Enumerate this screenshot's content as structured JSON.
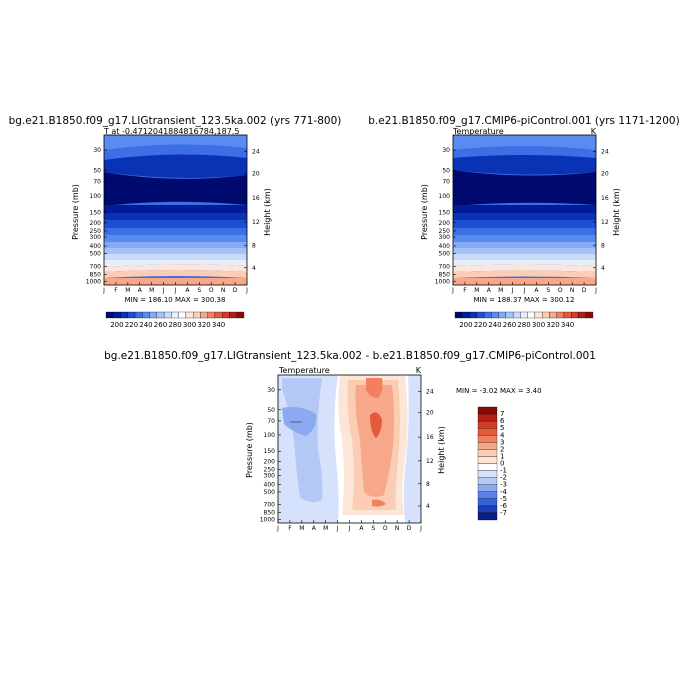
{
  "chart_data": [
    {
      "type": "contour",
      "title": "bg.e21.B1850.f09_g17.LIGtransient_123.5ka.002 (yrs 771-800)",
      "subtitle_left": "T at -0.4712041884816784,187.5",
      "subtitle_right": "",
      "ylabel": "Pressure (mb)",
      "ylabel_right": "Height (km)",
      "months": [
        "J",
        "F",
        "M",
        "A",
        "M",
        "J",
        "J",
        "A",
        "S",
        "O",
        "N",
        "D",
        "J"
      ],
      "pressure_ticks": [
        "30",
        "50",
        "70",
        "100",
        "150",
        "200",
        "250",
        "300",
        "400",
        "500",
        "700",
        "850",
        "1000"
      ],
      "height_ticks": [
        "24",
        "20",
        "16",
        "12",
        "8",
        "4"
      ],
      "stats": "MIN = 186.10  MAX = 300.38",
      "colorbar_labels": [
        "200",
        "220",
        "240",
        "260",
        "280",
        "300",
        "320",
        "340"
      ],
      "min": 186.1,
      "max": 300.38
    },
    {
      "type": "contour",
      "title": "b.e21.B1850.f09_g17.CMIP6-piControl.001 (yrs 1171-1200)",
      "subtitle_left": "Temperature",
      "subtitle_right": "K",
      "ylabel": "Pressure (mb)",
      "ylabel_right": "Height (km)",
      "months": [
        "J",
        "F",
        "M",
        "A",
        "M",
        "J",
        "J",
        "A",
        "S",
        "O",
        "N",
        "D",
        "J"
      ],
      "pressure_ticks": [
        "30",
        "50",
        "70",
        "100",
        "150",
        "200",
        "250",
        "300",
        "400",
        "500",
        "700",
        "850",
        "1000"
      ],
      "height_ticks": [
        "24",
        "20",
        "16",
        "12",
        "8",
        "4"
      ],
      "stats": "MIN = 188.37  MAX = 300.12",
      "colorbar_labels": [
        "200",
        "220",
        "240",
        "260",
        "280",
        "300",
        "320",
        "340"
      ],
      "min": 188.37,
      "max": 300.12
    },
    {
      "type": "contour",
      "title": "bg.e21.B1850.f09_g17.LIGtransient_123.5ka.002 - b.e21.B1850.f09_g17.CMIP6-piControl.001",
      "subtitle_left": "Temperature",
      "subtitle_right": "K",
      "ylabel": "Pressure (mb)",
      "ylabel_right": "Height (km)",
      "months": [
        "J",
        "F",
        "M",
        "A",
        "M",
        "J",
        "J",
        "A",
        "S",
        "O",
        "N",
        "D",
        "J"
      ],
      "pressure_ticks": [
        "30",
        "50",
        "70",
        "100",
        "150",
        "200",
        "250",
        "300",
        "400",
        "500",
        "700",
        "850",
        "1000"
      ],
      "height_ticks": [
        "24",
        "20",
        "16",
        "12",
        "8",
        "4"
      ],
      "stats": "MIN =   -3.02  MAX =     3.40",
      "colorbar_labels": [
        "7",
        "6",
        "5",
        "4",
        "3",
        "2",
        "1",
        "0",
        "-1",
        "-2",
        "-3",
        "-4",
        "-5",
        "-6",
        "-7"
      ],
      "min": -3.02,
      "max": 3.4
    }
  ],
  "colors": {
    "temp_scale": [
      "#000a6e",
      "#001c96",
      "#0a32b4",
      "#1e4ed2",
      "#3c6ee6",
      "#5a8cf0",
      "#82aaf5",
      "#a5c3f8",
      "#c8dcfa",
      "#e6f0fc",
      "#ffffff",
      "#fde6d8",
      "#fbcdb4",
      "#f7a88a",
      "#f28060",
      "#e65a3c",
      "#d23c28",
      "#b41e14",
      "#8c0a0a"
    ],
    "diff_scale": [
      "#8c0a0a",
      "#b41e14",
      "#d23c28",
      "#e65a3c",
      "#f28060",
      "#f7a88a",
      "#fbcdb4",
      "#fde6d8",
      "#ffffff",
      "#d6e2fb",
      "#b4c8f8",
      "#8caaf2",
      "#5a84e8",
      "#3462d8",
      "#1e3cb4",
      "#0a1e8c"
    ]
  }
}
